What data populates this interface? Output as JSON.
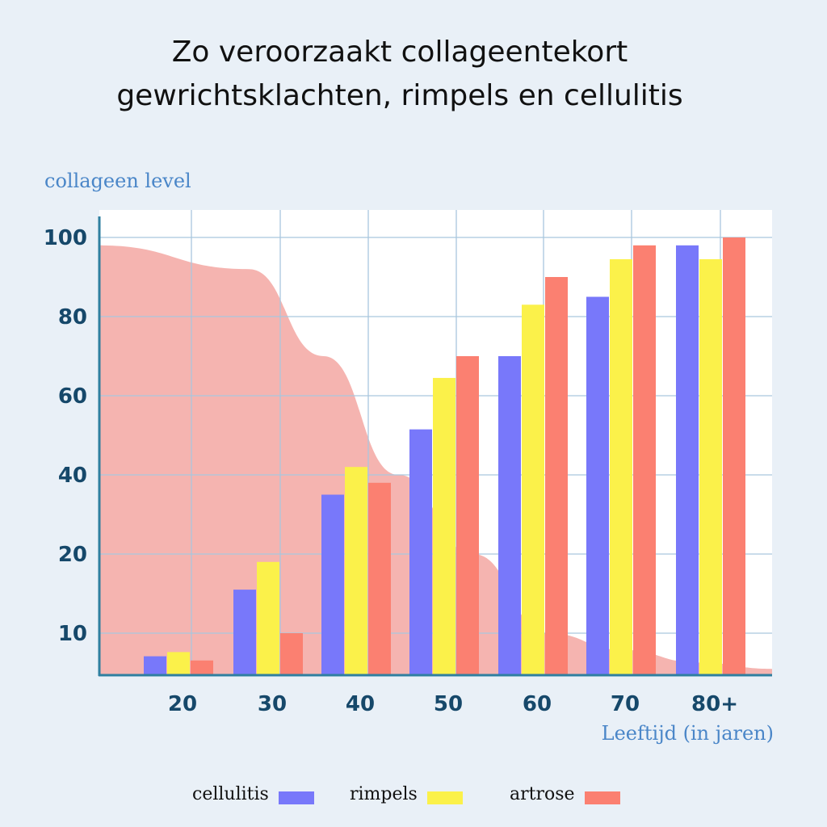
{
  "chart_data": {
    "type": "bar",
    "title_lines": [
      "Zo veroorzaakt collageentekort",
      "gewrichtsklachten, rimpels en cellulitis"
    ],
    "ylabel": "collageen level",
    "xlabel": "Leeftijd (in jaren)",
    "categories": [
      "20",
      "30",
      "40",
      "50",
      "60",
      "70",
      "80+"
    ],
    "y_ticks": [
      {
        "label": "10",
        "value": 10
      },
      {
        "label": "20",
        "value": 20
      },
      {
        "label": "40",
        "value": 40
      },
      {
        "label": "60",
        "value": 60
      },
      {
        "label": "80",
        "value": 80
      },
      {
        "label": "100",
        "value": 100
      }
    ],
    "series": [
      {
        "name": "cellulitis",
        "color": "#7878fa",
        "values": [
          4.5,
          15.5,
          35,
          51.5,
          70,
          85,
          98
        ]
      },
      {
        "name": "rimpels",
        "color": "#fbf14a",
        "values": [
          5.5,
          19,
          42,
          64.5,
          83,
          94.5,
          94.5
        ]
      },
      {
        "name": "artrose",
        "color": "#fb8071",
        "values": [
          3.5,
          10,
          38,
          70,
          90,
          98,
          100
        ]
      }
    ],
    "collagen_curve": {
      "x": [
        0,
        20,
        30,
        40,
        50,
        60,
        70,
        80,
        90
      ],
      "y": [
        98,
        92,
        70,
        40,
        20,
        10,
        6,
        3,
        1.5
      ]
    },
    "grid": true,
    "legend_position": "bottom"
  },
  "colors": {
    "background": "#e9f0f7",
    "plot_background": "#ffffff",
    "axis": "#2f7fa0",
    "grid": "#a9c6de",
    "curve": "#f3a7a2",
    "tick_text": "#16486a",
    "axis_title": "#4a86c8"
  }
}
